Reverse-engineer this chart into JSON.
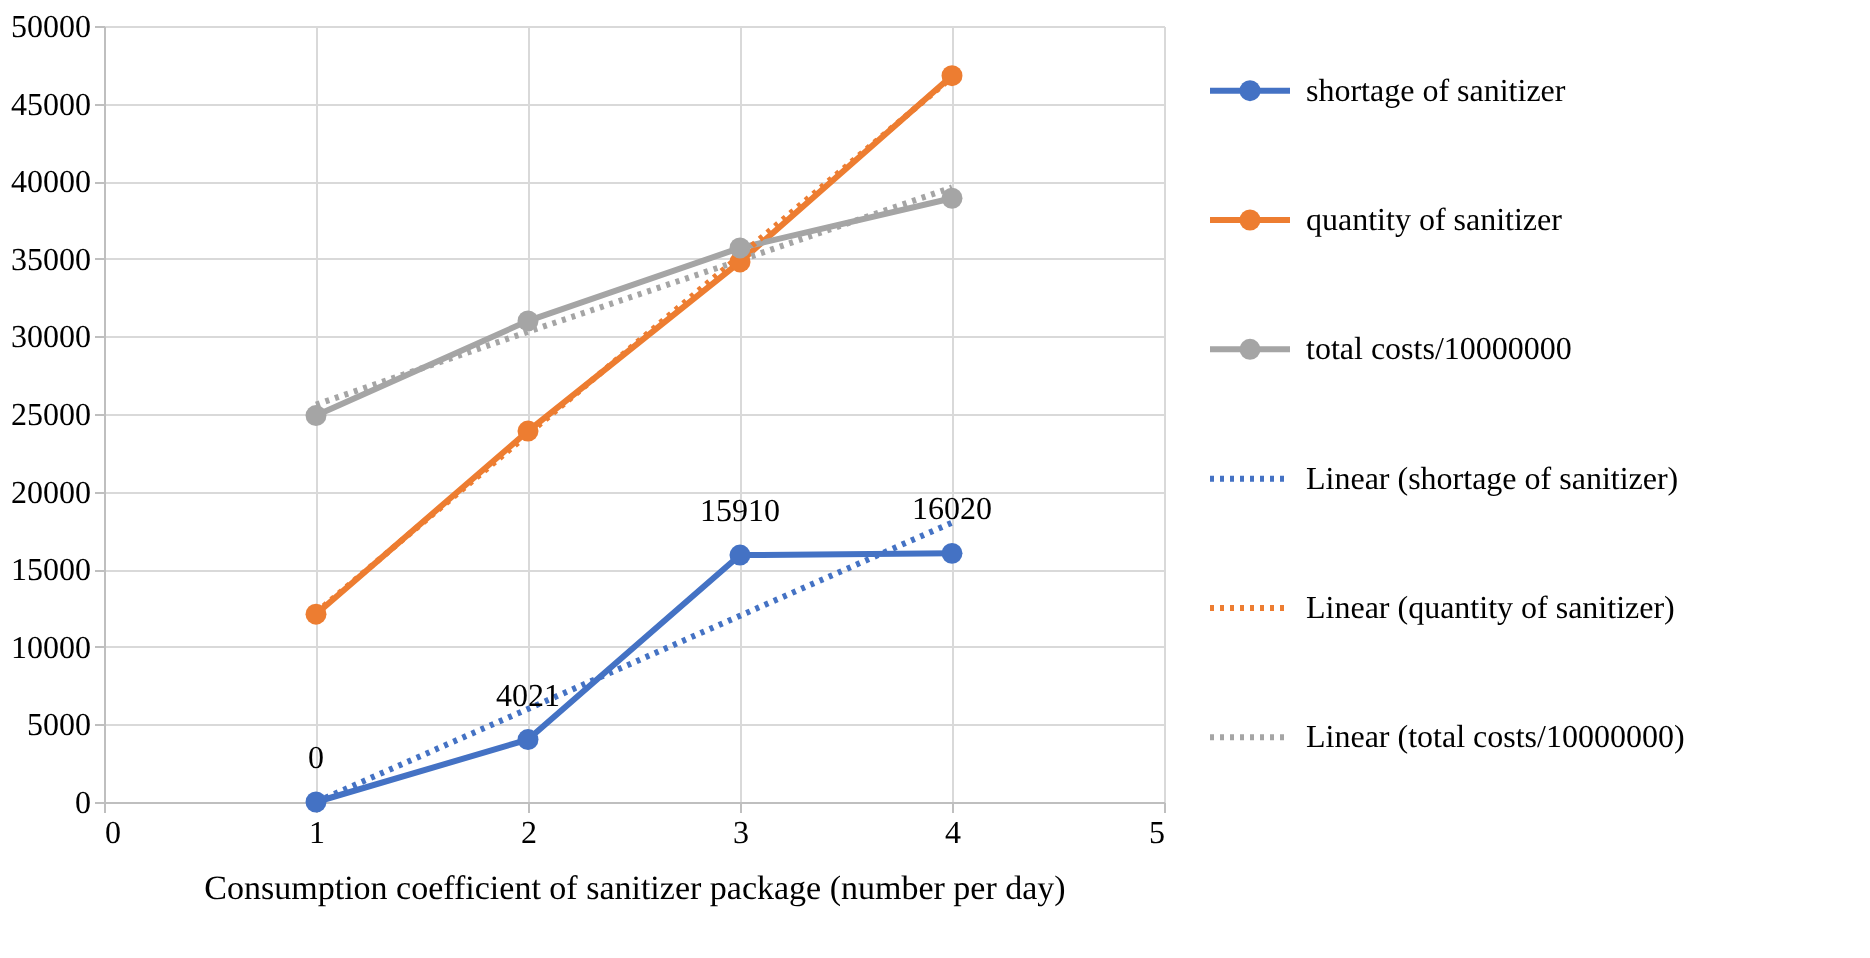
{
  "chart_data": {
    "type": "line",
    "xlabel": "Consumption coefficient of sanitizer package (number per day)",
    "x": [
      1,
      2,
      3,
      4
    ],
    "xlim": [
      0,
      5
    ],
    "xticks": [
      0,
      1,
      2,
      3,
      4,
      5
    ],
    "ylim": [
      0,
      50000
    ],
    "yticks": [
      0,
      5000,
      10000,
      15000,
      20000,
      25000,
      30000,
      35000,
      40000,
      45000,
      50000
    ],
    "grid": true,
    "legend": "right",
    "marker": "circle",
    "line_style": "solid",
    "series": [
      {
        "name": "shortage of sanitizer",
        "color": "#4472c4",
        "values": [
          0,
          4021,
          15910,
          16020
        ],
        "value_labels": [
          "0",
          "4021",
          "15910",
          "16020"
        ]
      },
      {
        "name": "quantity of sanitizer",
        "color": "#ed7d31",
        "values": [
          12100,
          23900,
          34800,
          46800
        ]
      },
      {
        "name": "total costs/10000000",
        "color": "#a5a5a5",
        "values": [
          24900,
          31000,
          35700,
          38900
        ]
      },
      {
        "name": "Linear (shortage of sanitizer)",
        "color": "#4472c4",
        "values": [
          0,
          6000,
          12000,
          18000
        ],
        "line_style": "dotted",
        "marker": "none"
      },
      {
        "name": "Linear (quantity of sanitizer)",
        "color": "#ed7d31",
        "values": [
          12200,
          23700,
          35200,
          46700
        ],
        "line_style": "dotted",
        "marker": "none"
      },
      {
        "name": "Linear (total costs/10000000)",
        "color": "#a5a5a5",
        "values": [
          25600,
          30300,
          34900,
          39600
        ],
        "line_style": "dotted",
        "marker": "none"
      }
    ]
  }
}
